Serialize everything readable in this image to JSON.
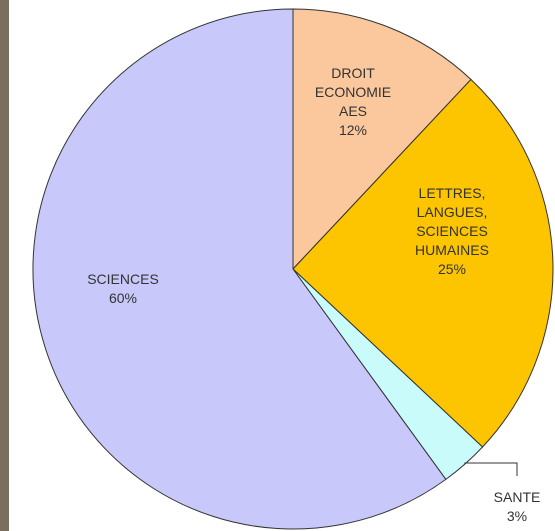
{
  "chart_data": {
    "type": "pie",
    "slices": [
      {
        "label_lines": [
          "DROIT",
          "ECONOMIE",
          "AES"
        ],
        "percent_label": "12%",
        "value": 12,
        "color": "#fbc79d"
      },
      {
        "label_lines": [
          "LETTRES,",
          "LANGUES,",
          "SCIENCES",
          "HUMAINES"
        ],
        "percent_label": "25%",
        "value": 25,
        "color": "#fcc500"
      },
      {
        "label_lines": [
          "SANTE"
        ],
        "percent_label": "3%",
        "value": 3,
        "color": "#c9fbfb"
      },
      {
        "label_lines": [
          "SCIENCES"
        ],
        "percent_label": "60%",
        "value": 60,
        "color": "#c8c8fa"
      }
    ],
    "start": "12 o'clock",
    "direction": "clockwise",
    "legend": "none",
    "colors": {
      "edge": "#333333",
      "text": "#333333",
      "frame": "#7a6e5f"
    }
  }
}
